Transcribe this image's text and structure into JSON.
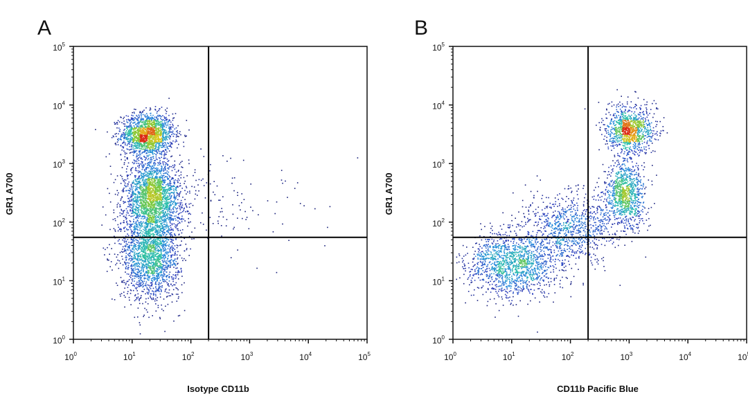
{
  "chart_data": [
    {
      "type": "scatter",
      "panel_label": "A",
      "xlabel": "Isotype CD11b",
      "ylabel": "GR1 A700",
      "x_scale": "log",
      "y_scale": "log",
      "xlim": [
        1,
        100000
      ],
      "ylim": [
        1,
        100000
      ],
      "x_ticks": [
        1,
        10,
        100,
        1000,
        10000,
        100000
      ],
      "y_ticks": [
        1,
        10,
        100,
        1000,
        10000,
        100000
      ],
      "quadrant_gate": {
        "x": 200,
        "y": 55
      },
      "populations": [
        {
          "cx": 18,
          "cy": 3200,
          "sx": 0.22,
          "sy": 0.18,
          "n": 1700
        },
        {
          "cx": 22,
          "cy": 270,
          "sx": 0.24,
          "sy": 0.32,
          "n": 2300
        },
        {
          "cx": 20,
          "cy": 28,
          "sx": 0.25,
          "sy": 0.38,
          "n": 1900
        },
        {
          "cx": 300,
          "cy": 250,
          "sx": 0.35,
          "sy": 0.45,
          "n": 90
        },
        {
          "cx": 6000,
          "cy": 180,
          "sx": 0.45,
          "sy": 0.4,
          "n": 25
        }
      ],
      "grid": false
    },
    {
      "type": "scatter",
      "panel_label": "B",
      "xlabel": "CD11b Pacific Blue",
      "ylabel": "GR1 A700",
      "x_scale": "log",
      "y_scale": "log",
      "xlim": [
        1,
        100000
      ],
      "ylim": [
        1,
        100000
      ],
      "x_ticks": [
        1,
        10,
        100,
        1000,
        10000,
        100000
      ],
      "y_ticks": [
        1,
        10,
        100,
        1000,
        10000,
        100000
      ],
      "quadrant_gate": {
        "x": 200,
        "y": 55
      },
      "populations": [
        {
          "cx": 1000,
          "cy": 3800,
          "sx": 0.2,
          "sy": 0.2,
          "n": 1100
        },
        {
          "cx": 850,
          "cy": 300,
          "sx": 0.18,
          "sy": 0.3,
          "n": 1000
        },
        {
          "cx": 10,
          "cy": 20,
          "sx": 0.4,
          "sy": 0.28,
          "n": 1500
        },
        {
          "cx": 90,
          "cy": 80,
          "sx": 0.4,
          "sy": 0.3,
          "n": 900
        }
      ],
      "grid": false
    }
  ]
}
